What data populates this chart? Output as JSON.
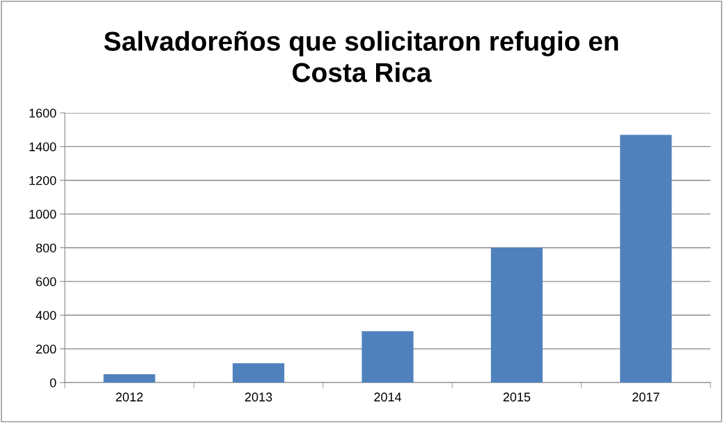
{
  "chart_data": {
    "type": "bar",
    "title": "Salvadoreños que solicitaron refugio en\nCosta Rica",
    "categories": [
      "2012",
      "2013",
      "2014",
      "2015",
      "2017"
    ],
    "values": [
      50,
      115,
      305,
      800,
      1470
    ],
    "color": "#4f81bd",
    "ylim": [
      0,
      1600
    ],
    "yticks": [
      0,
      200,
      400,
      600,
      800,
      1000,
      1200,
      1400,
      1600
    ],
    "grid": "y"
  }
}
